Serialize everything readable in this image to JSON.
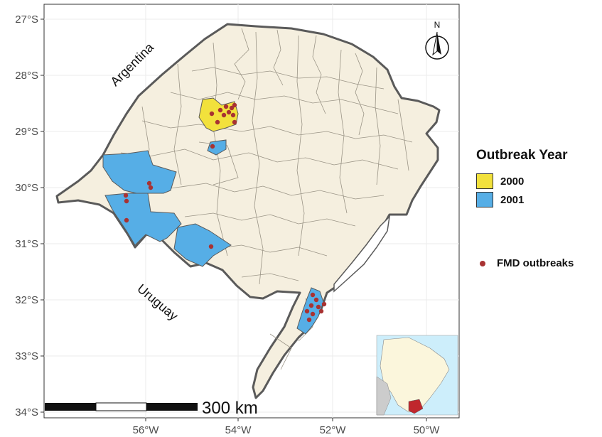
{
  "map": {
    "y_axis_ticks": [
      "27°S",
      "28°S",
      "29°S",
      "30°S",
      "31°S",
      "32°S",
      "33°S",
      "34°S"
    ],
    "x_axis_ticks": [
      "56°W",
      "54°W",
      "52°W",
      "50°W"
    ],
    "labels": {
      "argentina": "Argentina",
      "uruguay": "Uruguay"
    },
    "north_arrow": "N",
    "scale_bar": "300 km"
  },
  "legend": {
    "title": "Outbreak Year",
    "items": [
      {
        "label": "2000",
        "color": "#f2e13c"
      },
      {
        "label": "2001",
        "color": "#56aee6"
      }
    ],
    "points_label": "FMD outbreaks",
    "points_color": "#a83232"
  },
  "colors": {
    "land": "#f5efdf",
    "border": "#5a5a5a",
    "inset_water": "#cdeefb",
    "inset_highlight": "#c0272d"
  }
}
